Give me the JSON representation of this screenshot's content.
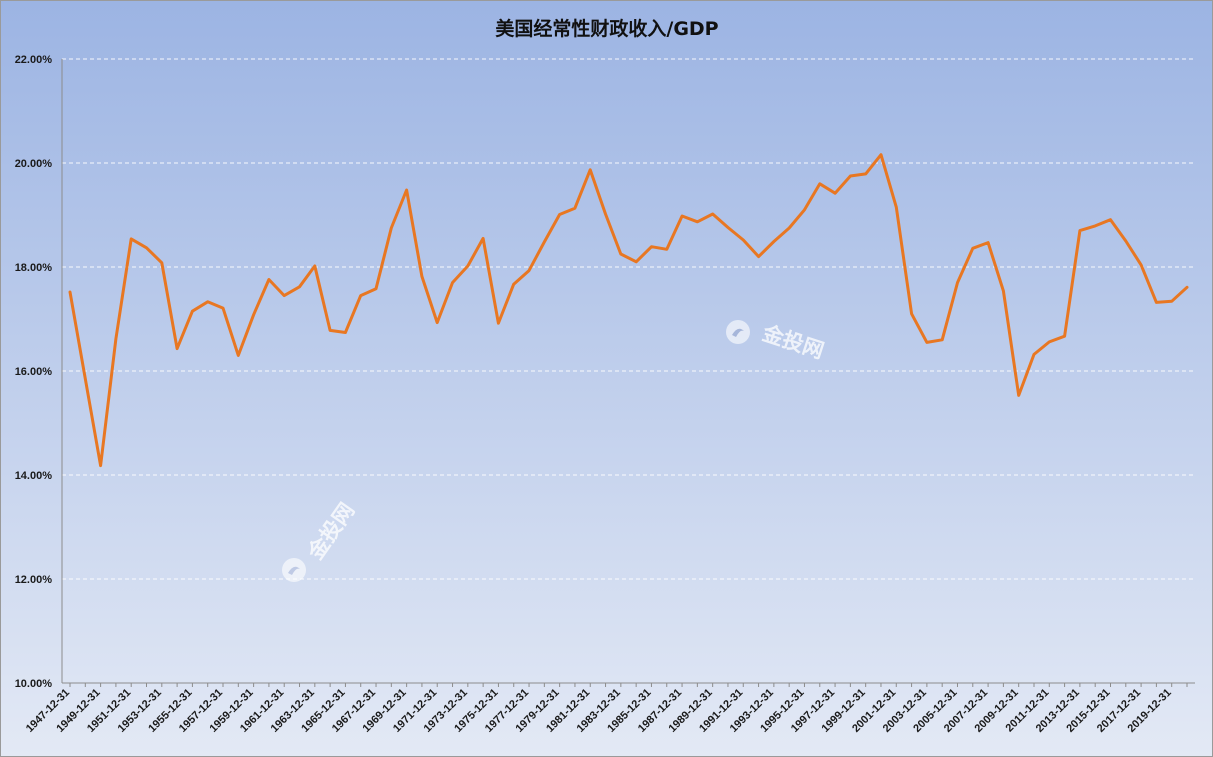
{
  "colors": {
    "background_top": "#9cb4e3",
    "background_bottom": "#e3e9f5",
    "line": "#e87722",
    "gridline": "#ffffff"
  },
  "watermark": {
    "text": "金投网",
    "icon": "jintou-logo-icon"
  },
  "chart_data": {
    "type": "line",
    "title": "美国经常性财政收入/GDP",
    "xlabel": "",
    "ylabel": "",
    "ylim": [
      0.1,
      0.22
    ],
    "y_tick_labels": [
      "10.00%",
      "12.00%",
      "14.00%",
      "16.00%",
      "18.00%",
      "20.00%",
      "22.00%"
    ],
    "y_ticks": [
      0.1,
      0.12,
      0.14,
      0.16,
      0.18,
      0.2,
      0.22
    ],
    "grid": "horizontal dashed",
    "legend": "none",
    "x": [
      "1947-12-31",
      "1948-12-31",
      "1949-12-31",
      "1950-12-31",
      "1951-12-31",
      "1952-12-31",
      "1953-12-31",
      "1954-12-31",
      "1955-12-31",
      "1956-12-31",
      "1957-12-31",
      "1958-12-31",
      "1959-12-31",
      "1960-12-31",
      "1961-12-31",
      "1962-12-31",
      "1963-12-31",
      "1964-12-31",
      "1965-12-31",
      "1966-12-31",
      "1967-12-31",
      "1968-12-31",
      "1969-12-31",
      "1970-12-31",
      "1971-12-31",
      "1972-12-31",
      "1973-12-31",
      "1974-12-31",
      "1975-12-31",
      "1976-12-31",
      "1977-12-31",
      "1978-12-31",
      "1979-12-31",
      "1980-12-31",
      "1981-12-31",
      "1982-12-31",
      "1983-12-31",
      "1984-12-31",
      "1985-12-31",
      "1986-12-31",
      "1987-12-31",
      "1988-12-31",
      "1989-12-31",
      "1990-12-31",
      "1991-12-31",
      "1992-12-31",
      "1993-12-31",
      "1994-12-31",
      "1995-12-31",
      "1996-12-31",
      "1997-12-31",
      "1998-12-31",
      "1999-12-31",
      "2000-12-31",
      "2001-12-31",
      "2002-12-31",
      "2003-12-31",
      "2004-12-31",
      "2005-12-31",
      "2006-12-31",
      "2007-12-31",
      "2008-12-31",
      "2009-12-31",
      "2010-12-31",
      "2011-12-31",
      "2012-12-31",
      "2013-12-31",
      "2014-12-31",
      "2015-12-31",
      "2016-12-31",
      "2017-12-31",
      "2018-12-31",
      "2019-12-31",
      "2020-12-31"
    ],
    "x_tick_labels": [
      "1947-12-31",
      "1949-12-31",
      "1951-12-31",
      "1953-12-31",
      "1955-12-31",
      "1957-12-31",
      "1959-12-31",
      "1961-12-31",
      "1963-12-31",
      "1965-12-31",
      "1967-12-31",
      "1969-12-31",
      "1971-12-31",
      "1973-12-31",
      "1975-12-31",
      "1977-12-31",
      "1979-12-31",
      "1981-12-31",
      "1983-12-31",
      "1985-12-31",
      "1987-12-31",
      "1989-12-31",
      "1991-12-31",
      "1993-12-31",
      "1995-12-31",
      "1997-12-31",
      "1999-12-31",
      "2001-12-31",
      "2003-12-31",
      "2005-12-31",
      "2007-12-31",
      "2009-12-31",
      "2011-12-31",
      "2013-12-31",
      "2015-12-31",
      "2017-12-31",
      "2019-12-31"
    ],
    "series": [
      {
        "values": [
          0.1752,
          0.1585,
          0.1418,
          0.1662,
          0.1854,
          0.1837,
          0.1808,
          0.1643,
          0.1715,
          0.1733,
          0.1721,
          0.163,
          0.1708,
          0.1776,
          0.1745,
          0.1762,
          0.1802,
          0.1678,
          0.1674,
          0.1745,
          0.1758,
          0.1875,
          0.1948,
          0.1782,
          0.1693,
          0.177,
          0.1802,
          0.1855,
          0.1692,
          0.1767,
          0.1793,
          0.1848,
          0.1901,
          0.1913,
          0.1987,
          0.1902,
          0.1825,
          0.181,
          0.1839,
          0.1834,
          0.1898,
          0.1887,
          0.1902,
          0.1876,
          0.1852,
          0.182,
          0.1849,
          0.1875,
          0.191,
          0.196,
          0.1942,
          0.1975,
          0.1979,
          0.2016,
          0.1915,
          0.171,
          0.1655,
          0.166,
          0.177,
          0.1836,
          0.1847,
          0.1754,
          0.1553,
          0.1632,
          0.1656,
          0.1667,
          0.187,
          0.1879,
          0.1891,
          0.185,
          0.1804,
          0.1732,
          0.1734,
          0.1761
        ]
      }
    ]
  }
}
